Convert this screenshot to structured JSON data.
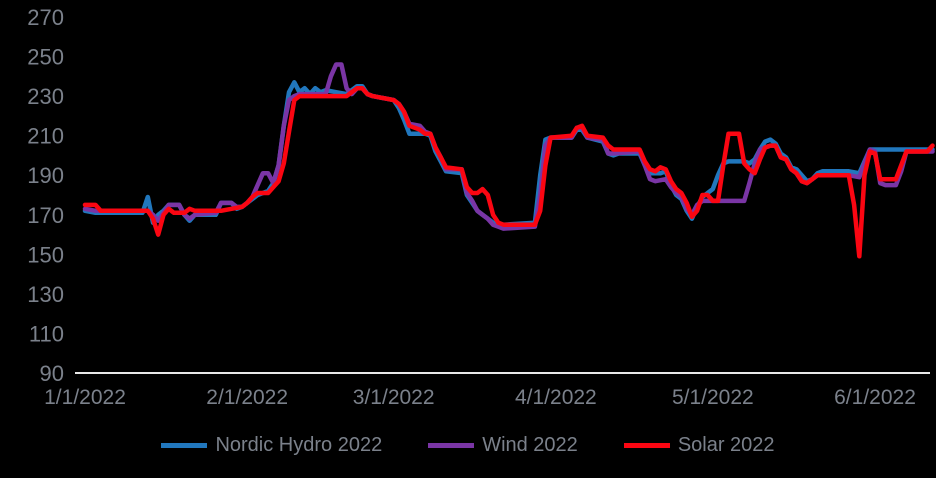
{
  "page": {
    "background_color": "#000000"
  },
  "axis": {
    "line_color": "#e8e8e8",
    "label_color": "#7b818b",
    "y_ticks": [
      90,
      110,
      130,
      150,
      170,
      190,
      210,
      230,
      250,
      270
    ],
    "x_ticks": [
      {
        "day": 0,
        "label": "1/1/2022"
      },
      {
        "day": 31,
        "label": "2/1/2022"
      },
      {
        "day": 59,
        "label": "3/1/2022"
      },
      {
        "day": 90,
        "label": "4/1/2022"
      },
      {
        "day": 120,
        "label": "5/1/2022"
      },
      {
        "day": 151,
        "label": "6/1/2022"
      }
    ]
  },
  "chart_data": {
    "type": "line",
    "title": "",
    "xlabel": "",
    "ylabel": "",
    "ylim": [
      90,
      270
    ],
    "x_day_range": [
      0,
      162
    ],
    "x_tick_labels": [
      "1/1/2022",
      "2/1/2022",
      "3/1/2022",
      "4/1/2022",
      "5/1/2022",
      "6/1/2022"
    ],
    "grid": false,
    "legend_position": "bottom",
    "series": [
      {
        "name": "Nordic Hydro 2022",
        "color": "#2177bd",
        "points": [
          [
            0,
            172
          ],
          [
            2,
            171
          ],
          [
            11,
            171
          ],
          [
            12,
            179
          ],
          [
            13,
            166
          ],
          [
            14,
            170
          ],
          [
            15,
            172
          ],
          [
            16,
            175
          ],
          [
            18,
            175
          ],
          [
            19,
            170
          ],
          [
            20,
            167
          ],
          [
            21,
            170
          ],
          [
            25,
            170
          ],
          [
            26,
            176
          ],
          [
            28,
            176
          ],
          [
            29,
            173
          ],
          [
            30,
            174
          ],
          [
            31,
            176
          ],
          [
            32,
            178
          ],
          [
            33,
            180
          ],
          [
            35,
            182
          ],
          [
            36,
            186
          ],
          [
            37,
            195
          ],
          [
            38,
            215
          ],
          [
            39,
            232
          ],
          [
            40,
            237
          ],
          [
            41,
            232
          ],
          [
            42,
            234
          ],
          [
            43,
            231
          ],
          [
            44,
            234
          ],
          [
            45,
            232
          ],
          [
            46,
            233
          ],
          [
            48,
            232
          ],
          [
            50,
            231
          ],
          [
            52,
            235
          ],
          [
            53,
            235
          ],
          [
            54,
            231
          ],
          [
            55,
            230
          ],
          [
            57,
            229
          ],
          [
            59,
            228
          ],
          [
            60,
            224
          ],
          [
            61,
            218
          ],
          [
            62,
            211
          ],
          [
            65,
            211
          ],
          [
            66,
            210
          ],
          [
            67,
            202
          ],
          [
            68,
            197
          ],
          [
            69,
            192
          ],
          [
            72,
            191
          ],
          [
            73,
            180
          ],
          [
            74,
            176
          ],
          [
            75,
            172
          ],
          [
            76,
            170
          ],
          [
            77,
            168
          ],
          [
            78,
            166
          ],
          [
            79,
            165
          ],
          [
            80,
            165
          ],
          [
            86,
            166
          ],
          [
            87,
            190
          ],
          [
            88,
            208
          ],
          [
            89,
            209
          ],
          [
            93,
            209
          ],
          [
            94,
            213
          ],
          [
            95,
            213
          ],
          [
            96,
            209
          ],
          [
            99,
            207
          ],
          [
            100,
            201
          ],
          [
            101,
            200
          ],
          [
            102,
            201
          ],
          [
            106,
            201
          ],
          [
            107,
            195
          ],
          [
            108,
            191
          ],
          [
            110,
            191
          ],
          [
            111,
            192
          ],
          [
            112,
            185
          ],
          [
            113,
            180
          ],
          [
            114,
            178
          ],
          [
            115,
            172
          ],
          [
            116,
            168
          ],
          [
            117,
            174
          ],
          [
            118,
            179
          ],
          [
            119,
            181
          ],
          [
            120,
            183
          ],
          [
            121,
            190
          ],
          [
            122,
            196
          ],
          [
            123,
            197
          ],
          [
            126,
            197
          ],
          [
            127,
            196
          ],
          [
            128,
            198
          ],
          [
            129,
            203
          ],
          [
            130,
            207
          ],
          [
            131,
            208
          ],
          [
            132,
            206
          ],
          [
            133,
            201
          ],
          [
            134,
            199
          ],
          [
            135,
            194
          ],
          [
            136,
            193
          ],
          [
            137,
            190
          ],
          [
            138,
            187
          ],
          [
            139,
            188
          ],
          [
            140,
            191
          ],
          [
            141,
            192
          ],
          [
            146,
            192
          ],
          [
            148,
            191
          ],
          [
            149,
            197
          ],
          [
            150,
            203
          ],
          [
            162,
            203
          ]
        ]
      },
      {
        "name": "Wind 2022",
        "color": "#7a35a5",
        "points": [
          [
            0,
            173
          ],
          [
            2,
            172
          ],
          [
            12,
            172
          ],
          [
            13,
            170
          ],
          [
            14,
            167
          ],
          [
            15,
            171
          ],
          [
            16,
            175
          ],
          [
            18,
            175
          ],
          [
            19,
            170
          ],
          [
            20,
            168
          ],
          [
            21,
            170
          ],
          [
            25,
            171
          ],
          [
            26,
            176
          ],
          [
            28,
            176
          ],
          [
            29,
            174
          ],
          [
            30,
            174
          ],
          [
            31,
            176
          ],
          [
            32,
            179
          ],
          [
            33,
            185
          ],
          [
            34,
            191
          ],
          [
            35,
            191
          ],
          [
            36,
            186
          ],
          [
            37,
            195
          ],
          [
            38,
            215
          ],
          [
            39,
            228
          ],
          [
            40,
            230
          ],
          [
            41,
            231
          ],
          [
            46,
            231
          ],
          [
            47,
            240
          ],
          [
            48,
            246
          ],
          [
            49,
            246
          ],
          [
            50,
            234
          ],
          [
            51,
            231
          ],
          [
            52,
            234
          ],
          [
            53,
            234
          ],
          [
            54,
            231
          ],
          [
            55,
            230
          ],
          [
            57,
            229
          ],
          [
            59,
            228
          ],
          [
            60,
            226
          ],
          [
            61,
            222
          ],
          [
            62,
            216
          ],
          [
            64,
            215
          ],
          [
            65,
            212
          ],
          [
            66,
            211
          ],
          [
            67,
            204
          ],
          [
            68,
            199
          ],
          [
            69,
            193
          ],
          [
            72,
            193
          ],
          [
            73,
            181
          ],
          [
            74,
            177
          ],
          [
            75,
            172
          ],
          [
            76,
            170
          ],
          [
            77,
            168
          ],
          [
            78,
            165
          ],
          [
            79,
            164
          ],
          [
            80,
            163
          ],
          [
            86,
            164
          ],
          [
            87,
            180
          ],
          [
            88,
            205
          ],
          [
            89,
            209
          ],
          [
            93,
            209
          ],
          [
            94,
            214
          ],
          [
            95,
            214
          ],
          [
            96,
            209
          ],
          [
            99,
            208
          ],
          [
            100,
            201
          ],
          [
            101,
            201
          ],
          [
            106,
            202
          ],
          [
            107,
            195
          ],
          [
            108,
            188
          ],
          [
            109,
            187
          ],
          [
            111,
            188
          ],
          [
            112,
            184
          ],
          [
            113,
            181
          ],
          [
            114,
            179
          ],
          [
            115,
            173
          ],
          [
            116,
            170
          ],
          [
            117,
            175
          ],
          [
            118,
            177
          ],
          [
            126,
            177
          ],
          [
            127,
            186
          ],
          [
            128,
            196
          ],
          [
            129,
            203
          ],
          [
            130,
            204
          ],
          [
            131,
            205
          ],
          [
            132,
            205
          ],
          [
            133,
            199
          ],
          [
            134,
            198
          ],
          [
            135,
            193
          ],
          [
            136,
            191
          ],
          [
            137,
            187
          ],
          [
            138,
            186
          ],
          [
            139,
            188
          ],
          [
            140,
            190
          ],
          [
            146,
            190
          ],
          [
            148,
            189
          ],
          [
            149,
            196
          ],
          [
            150,
            203
          ],
          [
            151,
            202
          ],
          [
            152,
            186
          ],
          [
            153,
            185
          ],
          [
            155,
            185
          ],
          [
            156,
            192
          ],
          [
            157,
            202
          ],
          [
            162,
            202
          ]
        ]
      },
      {
        "name": "Solar 2022",
        "color": "#fb0612",
        "points": [
          [
            0,
            175
          ],
          [
            2,
            175
          ],
          [
            3,
            172
          ],
          [
            12,
            172
          ],
          [
            13,
            168
          ],
          [
            14,
            160
          ],
          [
            15,
            170
          ],
          [
            16,
            173
          ],
          [
            17,
            171
          ],
          [
            19,
            171
          ],
          [
            20,
            173
          ],
          [
            21,
            172
          ],
          [
            26,
            172
          ],
          [
            28,
            173
          ],
          [
            30,
            174
          ],
          [
            31,
            176
          ],
          [
            32,
            179
          ],
          [
            33,
            181
          ],
          [
            35,
            181
          ],
          [
            36,
            184
          ],
          [
            37,
            187
          ],
          [
            38,
            196
          ],
          [
            39,
            212
          ],
          [
            40,
            228
          ],
          [
            41,
            230
          ],
          [
            46,
            230
          ],
          [
            50,
            230
          ],
          [
            52,
            234
          ],
          [
            53,
            234
          ],
          [
            54,
            231
          ],
          [
            55,
            230
          ],
          [
            57,
            229
          ],
          [
            59,
            228
          ],
          [
            60,
            226
          ],
          [
            61,
            222
          ],
          [
            62,
            215
          ],
          [
            64,
            213
          ],
          [
            65,
            211
          ],
          [
            66,
            211
          ],
          [
            67,
            204
          ],
          [
            68,
            199
          ],
          [
            69,
            194
          ],
          [
            72,
            193
          ],
          [
            73,
            184
          ],
          [
            74,
            181
          ],
          [
            75,
            181
          ],
          [
            76,
            183
          ],
          [
            77,
            180
          ],
          [
            78,
            170
          ],
          [
            79,
            166
          ],
          [
            80,
            165
          ],
          [
            86,
            165
          ],
          [
            87,
            172
          ],
          [
            88,
            195
          ],
          [
            89,
            209
          ],
          [
            93,
            210
          ],
          [
            94,
            214
          ],
          [
            95,
            215
          ],
          [
            96,
            210
          ],
          [
            99,
            209
          ],
          [
            100,
            205
          ],
          [
            101,
            203
          ],
          [
            106,
            203
          ],
          [
            107,
            197
          ],
          [
            108,
            193
          ],
          [
            109,
            192
          ],
          [
            110,
            194
          ],
          [
            111,
            193
          ],
          [
            112,
            187
          ],
          [
            113,
            183
          ],
          [
            114,
            181
          ],
          [
            115,
            176
          ],
          [
            116,
            169
          ],
          [
            117,
            172
          ],
          [
            118,
            180
          ],
          [
            119,
            180
          ],
          [
            120,
            177
          ],
          [
            121,
            177
          ],
          [
            122,
            195
          ],
          [
            123,
            211
          ],
          [
            125,
            211
          ],
          [
            126,
            196
          ],
          [
            127,
            193
          ],
          [
            128,
            191
          ],
          [
            129,
            198
          ],
          [
            130,
            204
          ],
          [
            131,
            205
          ],
          [
            132,
            205
          ],
          [
            133,
            199
          ],
          [
            134,
            198
          ],
          [
            135,
            193
          ],
          [
            136,
            191
          ],
          [
            137,
            187
          ],
          [
            138,
            186
          ],
          [
            139,
            188
          ],
          [
            140,
            190
          ],
          [
            146,
            190
          ],
          [
            147,
            175
          ],
          [
            148,
            149
          ],
          [
            149,
            190
          ],
          [
            150,
            202
          ],
          [
            151,
            201
          ],
          [
            152,
            188
          ],
          [
            155,
            188
          ],
          [
            156,
            195
          ],
          [
            157,
            202
          ],
          [
            161,
            202
          ],
          [
            162,
            205
          ]
        ]
      }
    ]
  },
  "legend": {
    "items": [
      {
        "label": "Nordic Hydro 2022"
      },
      {
        "label": "Wind 2022"
      },
      {
        "label": "Solar 2022"
      }
    ]
  }
}
